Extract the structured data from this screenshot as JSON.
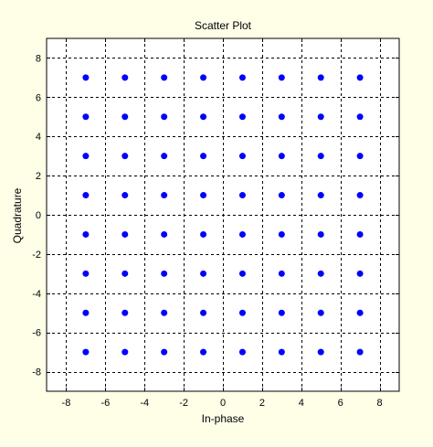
{
  "chart_data": {
    "type": "scatter",
    "title": "Scatter Plot",
    "xlabel": "In-phase",
    "ylabel": "Quadrature",
    "xlim": [
      -9,
      9
    ],
    "ylim": [
      -9,
      9
    ],
    "xticks": [
      -8,
      -6,
      -4,
      -2,
      0,
      2,
      4,
      6,
      8
    ],
    "yticks": [
      -8,
      -6,
      -4,
      -2,
      0,
      2,
      4,
      6,
      8
    ],
    "grid": true,
    "grid_style": "dashed",
    "marker_color": "#0000ff",
    "points": [
      [
        -7,
        7
      ],
      [
        -5,
        7
      ],
      [
        -3,
        7
      ],
      [
        -1,
        7
      ],
      [
        1,
        7
      ],
      [
        3,
        7
      ],
      [
        5,
        7
      ],
      [
        7,
        7
      ],
      [
        -7,
        5
      ],
      [
        -5,
        5
      ],
      [
        -3,
        5
      ],
      [
        -1,
        5
      ],
      [
        1,
        5
      ],
      [
        3,
        5
      ],
      [
        5,
        5
      ],
      [
        7,
        5
      ],
      [
        -7,
        3
      ],
      [
        -5,
        3
      ],
      [
        -3,
        3
      ],
      [
        -1,
        3
      ],
      [
        1,
        3
      ],
      [
        3,
        3
      ],
      [
        5,
        3
      ],
      [
        7,
        3
      ],
      [
        -7,
        1
      ],
      [
        -5,
        1
      ],
      [
        -3,
        1
      ],
      [
        -1,
        1
      ],
      [
        1,
        1
      ],
      [
        3,
        1
      ],
      [
        5,
        1
      ],
      [
        7,
        1
      ],
      [
        -7,
        -1
      ],
      [
        -5,
        -1
      ],
      [
        -3,
        -1
      ],
      [
        -1,
        -1
      ],
      [
        1,
        -1
      ],
      [
        3,
        -1
      ],
      [
        5,
        -1
      ],
      [
        7,
        -1
      ],
      [
        -7,
        -3
      ],
      [
        -5,
        -3
      ],
      [
        -3,
        -3
      ],
      [
        -1,
        -3
      ],
      [
        1,
        -3
      ],
      [
        3,
        -3
      ],
      [
        5,
        -3
      ],
      [
        7,
        -3
      ],
      [
        -7,
        -5
      ],
      [
        -5,
        -5
      ],
      [
        -3,
        -5
      ],
      [
        -1,
        -5
      ],
      [
        1,
        -5
      ],
      [
        3,
        -5
      ],
      [
        5,
        -5
      ],
      [
        7,
        -5
      ],
      [
        -7,
        -7
      ],
      [
        -5,
        -7
      ],
      [
        -3,
        -7
      ],
      [
        -1,
        -7
      ],
      [
        1,
        -7
      ],
      [
        3,
        -7
      ],
      [
        5,
        -7
      ],
      [
        7,
        -7
      ]
    ]
  },
  "colors": {
    "figure_background": "#ffffe8",
    "plot_background": "#ffffff",
    "marker": "#0000ff",
    "grid": "#000000"
  }
}
